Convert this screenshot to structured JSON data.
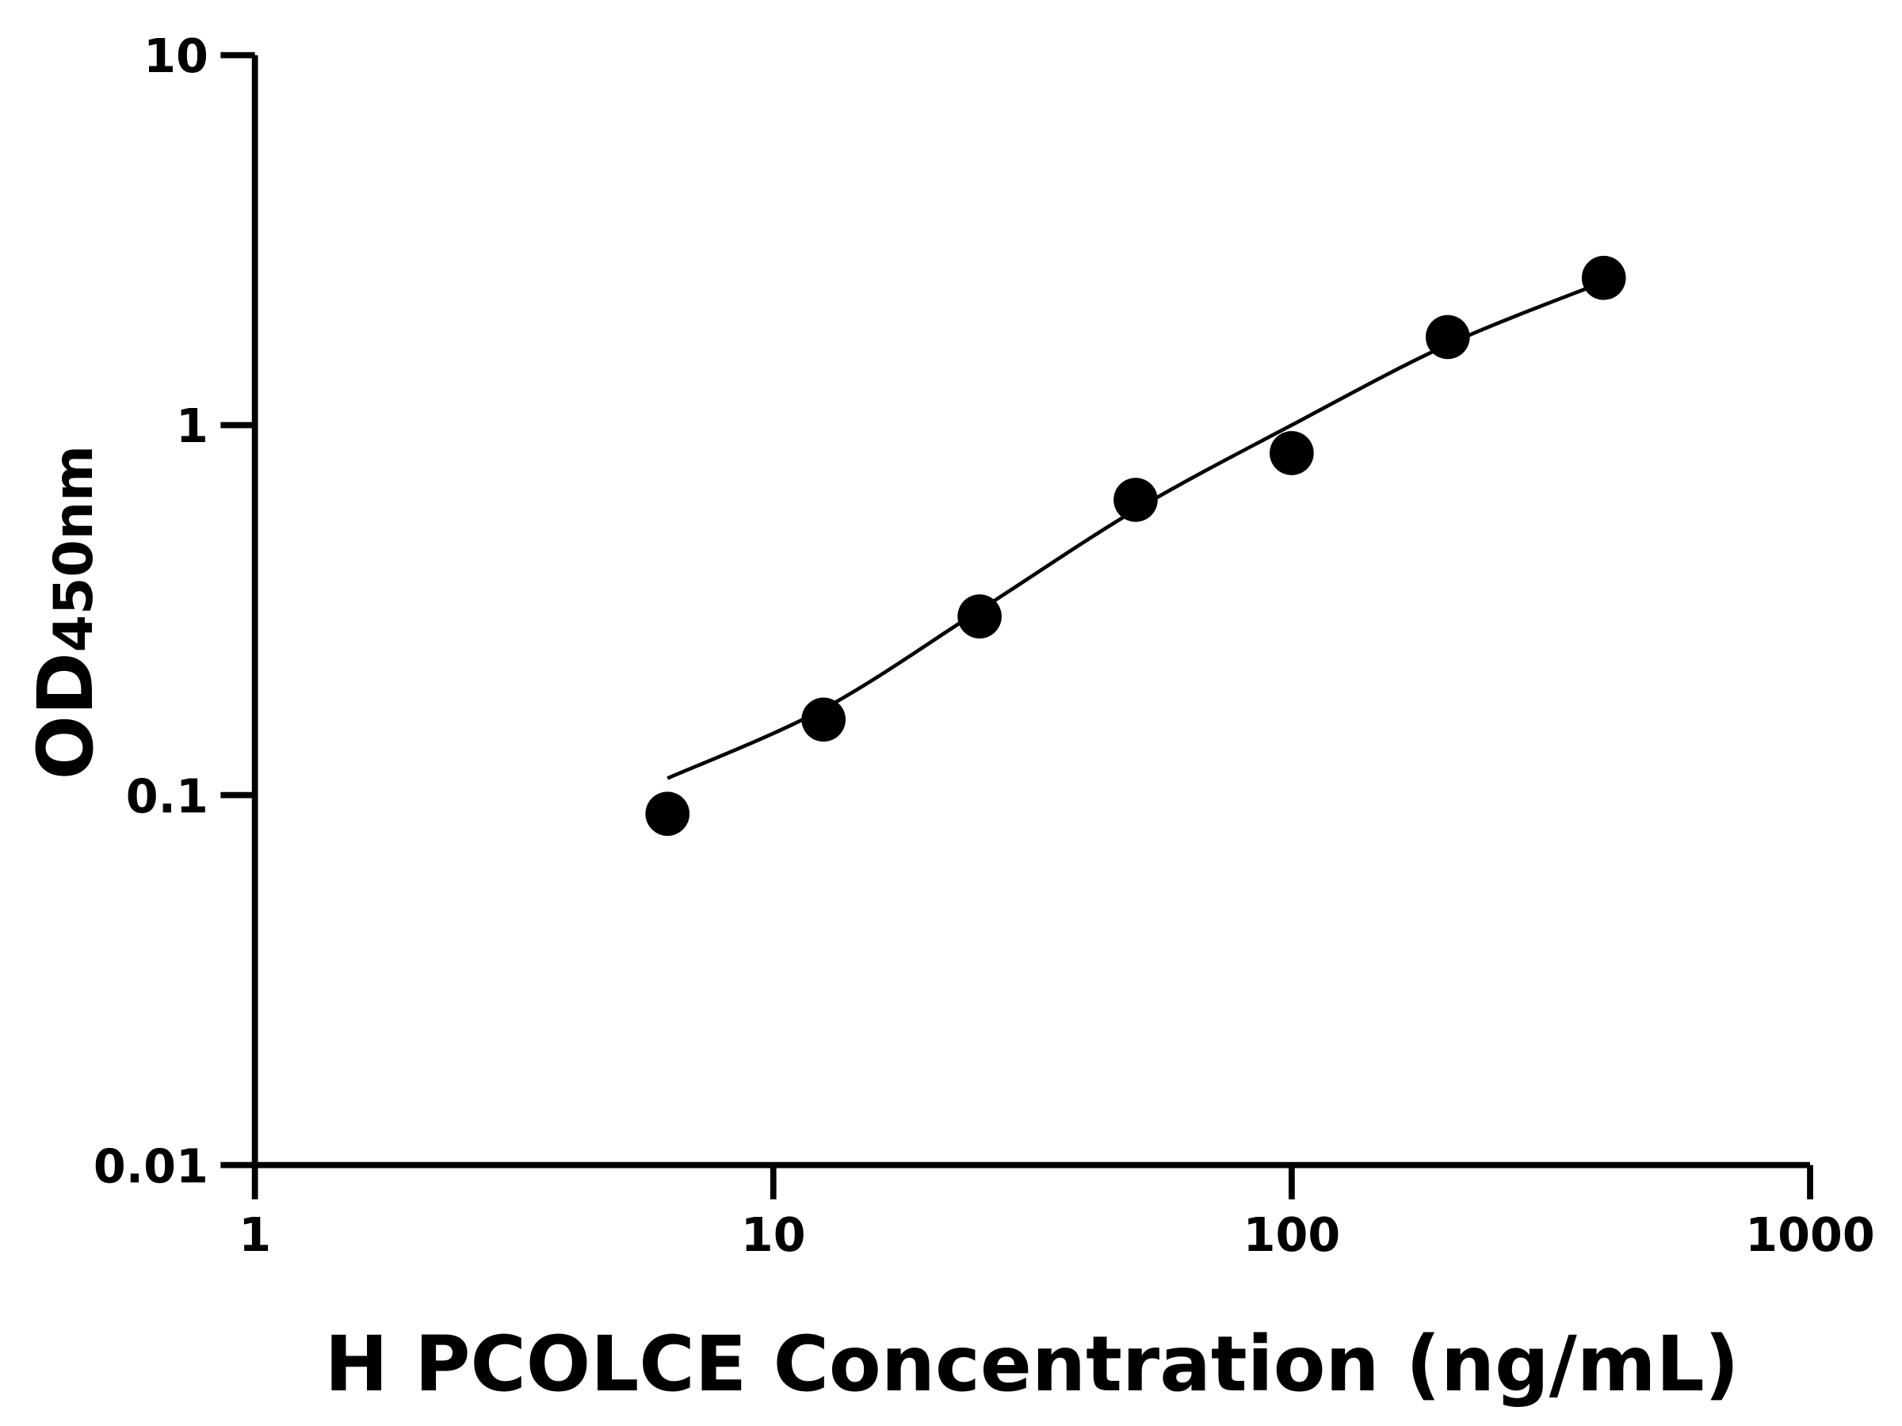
{
  "chart_data": {
    "type": "scatter",
    "xlabel": "H PCOLCE Concentration (ng/mL)",
    "ylabel_main": "OD",
    "ylabel_sub": "450nm",
    "xscale": "log",
    "yscale": "log",
    "xlim": [
      1,
      1000
    ],
    "ylim": [
      0.01,
      10
    ],
    "xticks": [
      1,
      10,
      100,
      1000
    ],
    "xtick_labels": [
      "1",
      "10",
      "100",
      "1000"
    ],
    "yticks": [
      0.01,
      0.1,
      1,
      10
    ],
    "ytick_labels": [
      "0.01",
      "0.1",
      "1",
      "10"
    ],
    "grid": false,
    "points": {
      "x": [
        6.25,
        12.5,
        25,
        50,
        100,
        200,
        400
      ],
      "y": [
        0.089,
        0.16,
        0.304,
        0.628,
        0.84,
        1.73,
        2.5
      ]
    },
    "fit_curve": {
      "x": [
        6.25,
        12.5,
        25,
        50,
        100,
        200,
        400
      ],
      "y": [
        0.111,
        0.171,
        0.316,
        0.59,
        1.0,
        1.65,
        2.44
      ]
    },
    "colors": {
      "points": "#000000",
      "curve": "#000000",
      "axes": "#000000"
    }
  }
}
